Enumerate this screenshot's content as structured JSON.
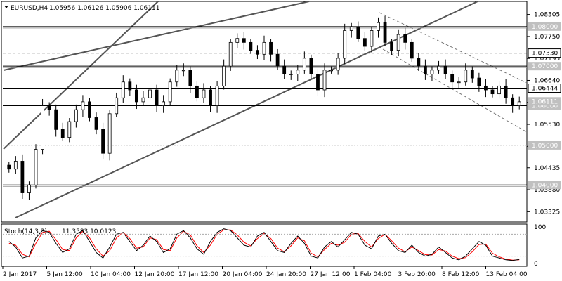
{
  "header": {
    "symbol": "EURUSD,H4",
    "ohlc": "1.05956 1.06126 1.05906 1.06111"
  },
  "chart_data": {
    "type": "candlestick",
    "instrument": "EURUSD",
    "timeframe": "H4",
    "price_axis": {
      "ylim": [
        1.031,
        1.086
      ],
      "ticks": [
        "1.08305",
        "1.07750",
        "1.07195",
        "1.06640",
        "1.06085",
        "1.05530",
        "1.04975",
        "1.04435",
        "1.03880",
        "1.03325"
      ]
    },
    "time_axis": {
      "labels": [
        "2 Jan 2017",
        "5 Jan 12:00",
        "10 Jan 04:00",
        "12 Jan 20:00",
        "17 Jan 12:00",
        "20 Jan 04:00",
        "24 Jan 20:00",
        "27 Jan 12:00",
        "1 Feb 04:00",
        "3 Feb 20:00",
        "8 Feb 12:00",
        "13 Feb 04:00"
      ]
    },
    "candles_close_path": [
      1.044,
      1.046,
      1.038,
      1.04,
      1.049,
      1.06,
      1.059,
      1.054,
      1.052,
      1.056,
      1.059,
      1.061,
      1.057,
      1.054,
      1.048,
      1.058,
      1.062,
      1.066,
      1.064,
      1.061,
      1.062,
      1.064,
      1.06,
      1.061,
      1.066,
      1.069,
      1.069,
      1.065,
      1.062,
      1.064,
      1.06,
      1.065,
      1.07,
      1.076,
      1.077,
      1.076,
      1.074,
      1.073,
      1.076,
      1.073,
      1.07,
      1.068,
      1.068,
      1.069,
      1.072,
      1.068,
      1.064,
      1.069,
      1.069,
      1.072,
      1.079,
      1.08,
      1.077,
      1.075,
      1.079,
      1.081,
      1.076,
      1.074,
      1.078,
      1.076,
      1.072,
      1.07,
      1.068,
      1.069,
      1.07,
      1.068,
      1.066,
      1.066,
      1.069,
      1.067,
      1.065,
      1.064,
      1.063,
      1.065,
      1.062,
      1.06,
      1.061
    ],
    "horizontal_levels": [
      {
        "price": "1.08000",
        "style": "solid"
      },
      {
        "price": "1.07330",
        "style": "dashed",
        "boxed": true
      },
      {
        "price": "1.07000",
        "style": "solid"
      },
      {
        "price": "1.06444",
        "style": "solid",
        "boxed": true
      },
      {
        "price": "1.06000",
        "style": "solid"
      },
      {
        "price": "1.05000",
        "style": "dotted"
      },
      {
        "price": "1.04000",
        "style": "solid"
      }
    ],
    "current_price": "1.06111",
    "oscillator": {
      "name": "Stoch(14,3,3)",
      "values_label": "11.3583 10.0123",
      "ylim": [
        0,
        100
      ],
      "ticks": [
        "100",
        "0"
      ],
      "k_values": [
        60,
        45,
        15,
        20,
        70,
        90,
        85,
        55,
        30,
        40,
        80,
        90,
        60,
        30,
        15,
        45,
        80,
        85,
        60,
        35,
        50,
        75,
        60,
        30,
        40,
        80,
        90,
        70,
        40,
        25,
        60,
        85,
        95,
        90,
        70,
        50,
        45,
        75,
        85,
        60,
        35,
        30,
        55,
        75,
        55,
        20,
        15,
        45,
        60,
        45,
        65,
        85,
        80,
        50,
        40,
        75,
        80,
        55,
        35,
        30,
        50,
        30,
        20,
        25,
        45,
        30,
        15,
        10,
        20,
        40,
        60,
        50,
        20,
        15,
        10,
        8,
        11
      ],
      "d_values": [
        55,
        50,
        25,
        18,
        55,
        85,
        88,
        65,
        38,
        35,
        70,
        88,
        70,
        40,
        20,
        35,
        70,
        85,
        68,
        42,
        45,
        70,
        65,
        38,
        35,
        70,
        88,
        78,
        48,
        30,
        50,
        80,
        92,
        92,
        78,
        58,
        48,
        68,
        82,
        68,
        42,
        32,
        48,
        70,
        62,
        28,
        18,
        38,
        55,
        50,
        58,
        80,
        82,
        60,
        45,
        68,
        80,
        62,
        42,
        32,
        45,
        35,
        24,
        23,
        38,
        34,
        20,
        13,
        16,
        32,
        52,
        53,
        28,
        18,
        12,
        9,
        10
      ]
    }
  },
  "colors": {
    "bg": "#ffffff",
    "candle": "#000000",
    "level_tag_bg": "#c0c0c0",
    "boxed_tag_bg": "#ffffff",
    "stoch_main": "#000000",
    "stoch_signal": "#ff0000"
  }
}
